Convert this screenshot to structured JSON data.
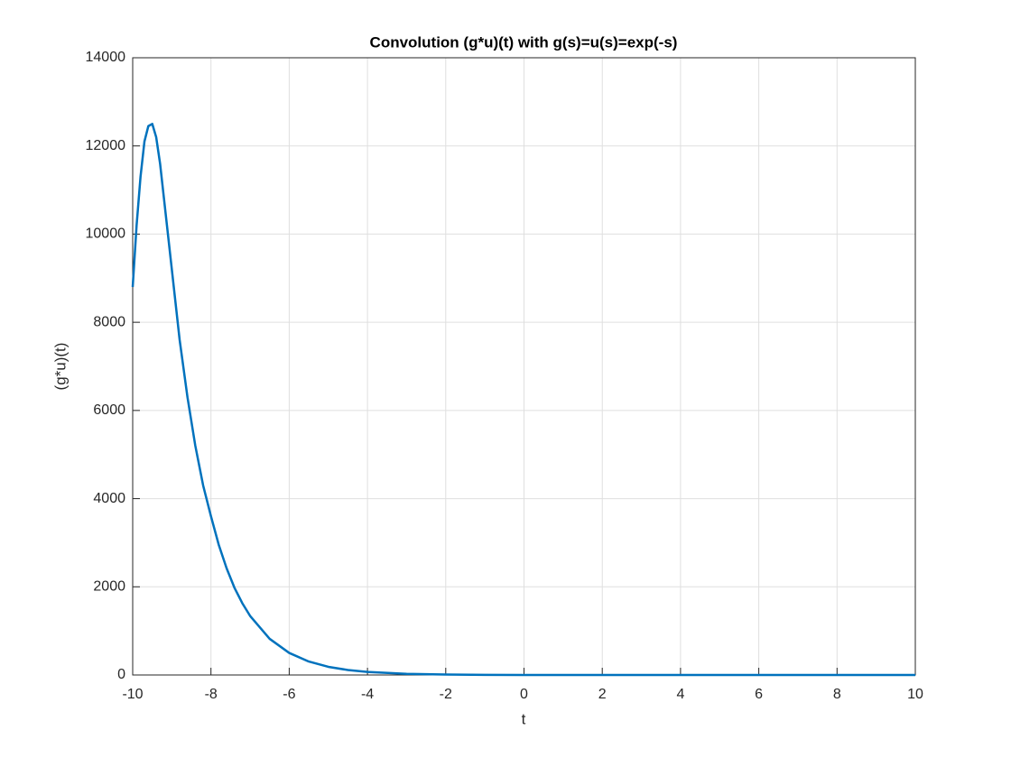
{
  "chart_data": {
    "type": "line",
    "title": "Convolution (g*u)(t) with g(s)=u(s)=exp(-s)",
    "x_label": "t",
    "y_label": "(g*u)(t)",
    "x": [
      -10,
      -9.9,
      -9.8,
      -9.7,
      -9.6,
      -9.5,
      -9.4,
      -9.3,
      -9.2,
      -9.1,
      -9,
      -8.8,
      -8.6,
      -8.4,
      -8.2,
      -8,
      -7.8,
      -7.6,
      -7.4,
      -7.2,
      -7,
      -6.5,
      -6,
      -5.5,
      -5,
      -4.5,
      -4,
      -3,
      -2,
      -1,
      0,
      2,
      4,
      6,
      8,
      10
    ],
    "series": [
      {
        "color": "#0072bd",
        "values": [
          8800,
          10200,
          11300,
          12100,
          12450,
          12500,
          12200,
          11600,
          10800,
          10000,
          9200,
          7600,
          6300,
          5200,
          4300,
          3600,
          2950,
          2420,
          1980,
          1630,
          1340,
          820,
          500,
          305,
          185,
          113,
          69,
          25,
          9,
          3,
          1,
          0,
          0,
          0,
          0,
          0
        ]
      }
    ],
    "xlim": [
      -10,
      10
    ],
    "xticks": [
      -10,
      -8,
      -6,
      -4,
      -2,
      0,
      2,
      4,
      6,
      8,
      10
    ],
    "ylim": [
      0,
      14000
    ],
    "yticks": [
      0,
      2000,
      4000,
      6000,
      8000,
      10000,
      12000,
      14000
    ],
    "grid": true
  }
}
